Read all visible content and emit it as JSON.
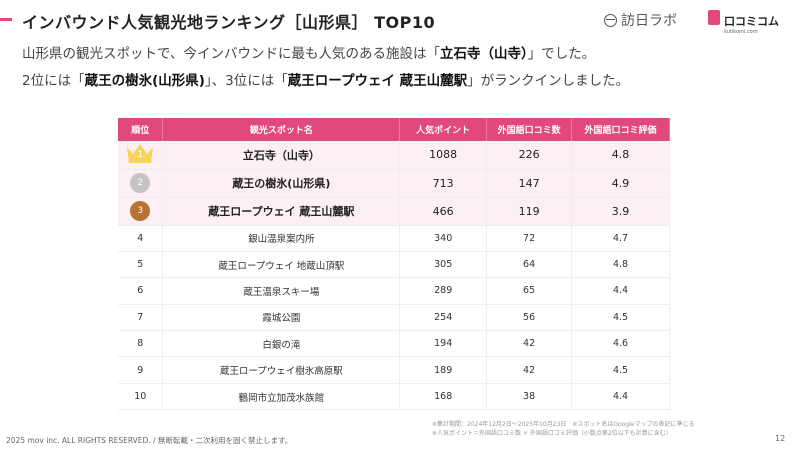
{
  "header": {
    "title": "インバウンド人気観光地ランキング［山形県］ TOP10",
    "logo_primary": "訪日ラボ",
    "logo_secondary": "口コミコム",
    "logo_secondary_sub": "kutikomi.com"
  },
  "summary": {
    "line1_pre": "山形県の観光スポットで、今インバウンドに最も人気のある施設は「",
    "line1_bold": "立石寺（山寺）",
    "line1_post": "」でした。",
    "line2_a": "2位には「",
    "line2_bold1": "蔵王の樹氷(山形県)",
    "line2_b": "」、3位には「",
    "line2_bold2": "蔵王ロープウェイ 蔵王山麓駅",
    "line2_c": "」がランクインしました。"
  },
  "table": {
    "headers": [
      "順位",
      "観光スポット名",
      "人気ポイント",
      "外国語口コミ数",
      "外国語口コミ評価"
    ],
    "rows": [
      {
        "rank": "1",
        "name": "立石寺（山寺）",
        "points": "1088",
        "reviews": "226",
        "rating": "4.8"
      },
      {
        "rank": "2",
        "name": "蔵王の樹氷(山形県)",
        "points": "713",
        "reviews": "147",
        "rating": "4.9"
      },
      {
        "rank": "3",
        "name": "蔵王ロープウェイ 蔵王山麓駅",
        "points": "466",
        "reviews": "119",
        "rating": "3.9"
      },
      {
        "rank": "4",
        "name": "銀山温泉案内所",
        "points": "340",
        "reviews": "72",
        "rating": "4.7"
      },
      {
        "rank": "5",
        "name": "蔵王ロープウェイ 地蔵山頂駅",
        "points": "305",
        "reviews": "64",
        "rating": "4.8"
      },
      {
        "rank": "6",
        "name": "蔵王温泉スキー場",
        "points": "289",
        "reviews": "65",
        "rating": "4.4"
      },
      {
        "rank": "7",
        "name": "霞城公園",
        "points": "254",
        "reviews": "56",
        "rating": "4.5"
      },
      {
        "rank": "8",
        "name": "白銀の滝",
        "points": "194",
        "reviews": "42",
        "rating": "4.6"
      },
      {
        "rank": "9",
        "name": "蔵王ロープウェイ樹氷高原駅",
        "points": "189",
        "reviews": "42",
        "rating": "4.5"
      },
      {
        "rank": "10",
        "name": "鶴岡市立加茂水族館",
        "points": "168",
        "reviews": "38",
        "rating": "4.4"
      }
    ]
  },
  "footer": {
    "note1": "※集計期間：2024年12月2日〜2025年10月23日　※スポット名はGoogleマップの表記に準じる",
    "note2": "※人気ポイント＝外国語口コミ数 × 外国語口コミ評価（小数点第2位以下も計算に含む）",
    "copyright": "2025 mov inc. ALL RIGHTS RESERVED. / 無断転載・二次利用を固く禁止します。",
    "page": "12"
  },
  "colors": {
    "accent": "#e0497a",
    "gold": "#f7d45c",
    "silver": "#c4c4c4",
    "bronze": "#b87333"
  }
}
